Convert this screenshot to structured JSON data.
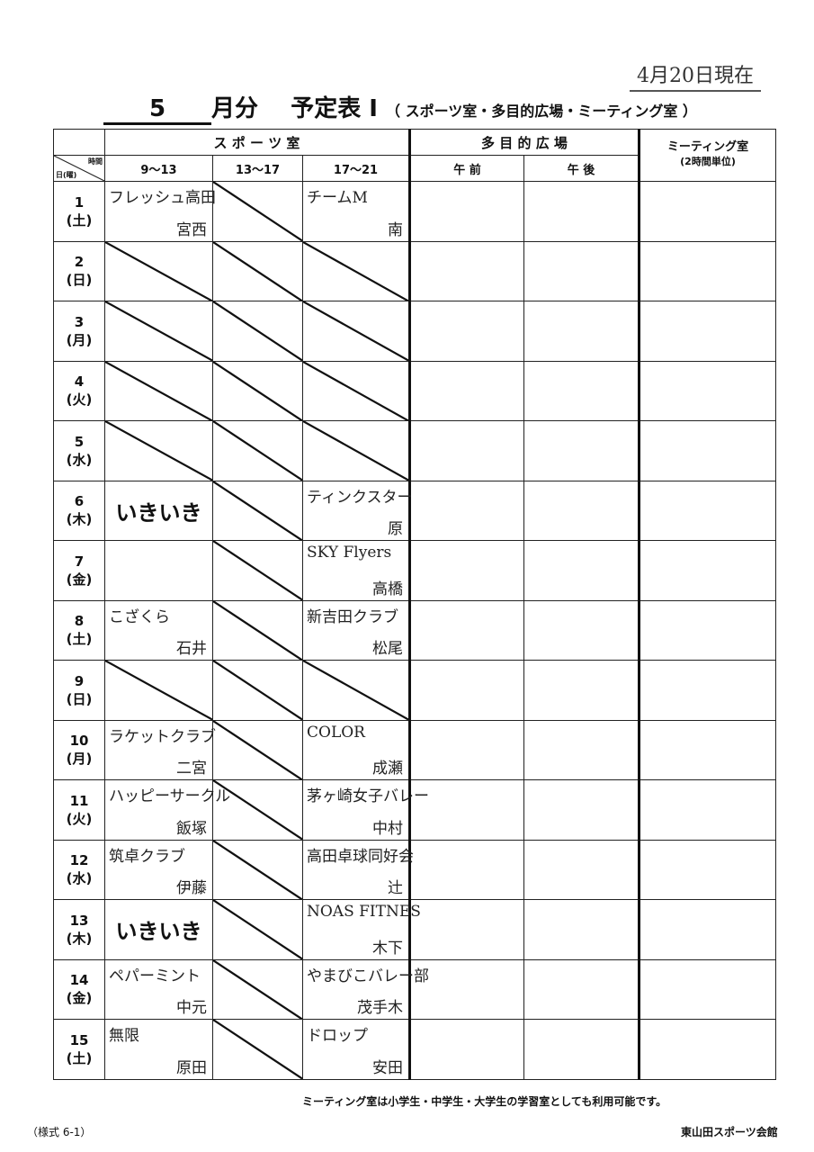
{
  "as_of": "4月20日現在",
  "title": {
    "month": "5",
    "suffix": "月分",
    "name": "予定表 Ⅰ",
    "sub": "（ スポーツ室・多目的広場・ミーティング室 ）"
  },
  "header": {
    "sports": "ス ポ ー ツ 室",
    "plaza": "多 目 的 広 場",
    "meeting": "ミーティング室",
    "meeting_sub": "(2時間単位)",
    "corner_time": "時間",
    "corner_day": "日(曜)",
    "slots": [
      "9～13",
      "13～17",
      "17～21"
    ],
    "plaza_slots": [
      "午 前",
      "午 後"
    ]
  },
  "rows": [
    {
      "day": "1",
      "dow": "(土)",
      "cells": [
        {
          "top": "フレッシュ高田",
          "bottom": "宮西"
        },
        "slash",
        {
          "top": "チームM",
          "bottom": "南"
        }
      ]
    },
    {
      "day": "2",
      "dow": "(日)",
      "cells": [
        "slash",
        "slash",
        "slash"
      ]
    },
    {
      "day": "3",
      "dow": "(月)",
      "cells": [
        "slash",
        "slash",
        "slash"
      ]
    },
    {
      "day": "4",
      "dow": "(火)",
      "cells": [
        "slash",
        "slash",
        "slash"
      ]
    },
    {
      "day": "5",
      "dow": "(水)",
      "cells": [
        "slash",
        "slash",
        "slash"
      ]
    },
    {
      "day": "6",
      "dow": "(木)",
      "cells": [
        {
          "big": "いきいき"
        },
        "slash",
        {
          "top": "ティンクスター",
          "bottom": "原"
        }
      ]
    },
    {
      "day": "7",
      "dow": "(金)",
      "cells": [
        {},
        "slash",
        {
          "top": "SKY Flyers",
          "bottom": "高橋"
        }
      ]
    },
    {
      "day": "8",
      "dow": "(土)",
      "cells": [
        {
          "top": "こざくら",
          "bottom": "石井"
        },
        "slash",
        {
          "top": "新吉田クラブ",
          "bottom": "松尾"
        }
      ]
    },
    {
      "day": "9",
      "dow": "(日)",
      "cells": [
        "slash",
        "slash",
        "slash"
      ]
    },
    {
      "day": "10",
      "dow": "(月)",
      "cells": [
        {
          "top": "ラケットクラブ",
          "bottom": "二宮"
        },
        "slash",
        {
          "top": "COLOR",
          "bottom": "成瀬"
        }
      ]
    },
    {
      "day": "11",
      "dow": "(火)",
      "cells": [
        {
          "top": "ハッピーサークル",
          "bottom": "飯塚"
        },
        "slash",
        {
          "top": "茅ヶ崎女子バレー",
          "bottom": "中村"
        }
      ]
    },
    {
      "day": "12",
      "dow": "(水)",
      "cells": [
        {
          "top": "筑卓クラブ",
          "bottom": "伊藤"
        },
        "slash",
        {
          "top": "高田卓球同好会",
          "bottom": "辻"
        }
      ]
    },
    {
      "day": "13",
      "dow": "(木)",
      "cells": [
        {
          "big": "いきいき"
        },
        "slash",
        {
          "top": "NOAS FITNES",
          "bottom": "木下"
        }
      ]
    },
    {
      "day": "14",
      "dow": "(金)",
      "cells": [
        {
          "top": "ペパーミント",
          "bottom": "中元"
        },
        "slash",
        {
          "top": "やまびこバレー部",
          "bottom": "茂手木"
        }
      ]
    },
    {
      "day": "15",
      "dow": "(土)",
      "cells": [
        {
          "top": "無限",
          "bottom": "原田"
        },
        "slash",
        {
          "top": "ドロップ",
          "bottom": "安田"
        }
      ]
    }
  ],
  "footer": {
    "note": "ミーティング室は小学生・中学生・大学生の学習室としても利用可能です。",
    "form": "（様式 6-1）",
    "org": "東山田スポーツ会館"
  }
}
